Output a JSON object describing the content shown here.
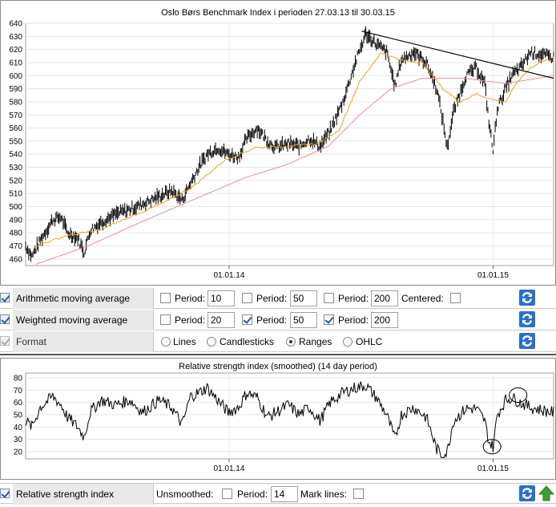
{
  "chart_data": [
    {
      "type": "bar",
      "subtype": "ohlc-ranges",
      "title": "Oslo Børs Benchmark Index i perioden 27.03.13 til 30.03.15",
      "ylim": [
        455,
        640
      ],
      "yticks": [
        460,
        470,
        480,
        490,
        500,
        510,
        520,
        530,
        540,
        550,
        560,
        570,
        580,
        590,
        600,
        610,
        620,
        630,
        640
      ],
      "xlim": [
        0,
        506
      ],
      "xticks": [
        {
          "t": 195,
          "label": "01.01.14"
        },
        {
          "t": 448,
          "label": "01.01.15"
        }
      ],
      "grid": true,
      "series": [
        {
          "name": "Index",
          "color": "#000000",
          "knots": [
            [
              0,
              470
            ],
            [
              6,
              462
            ],
            [
              14,
              474
            ],
            [
              26,
              490
            ],
            [
              34,
              492
            ],
            [
              40,
              480
            ],
            [
              50,
              476
            ],
            [
              56,
              465
            ],
            [
              62,
              482
            ],
            [
              72,
              488
            ],
            [
              86,
              494
            ],
            [
              100,
              498
            ],
            [
              112,
              502
            ],
            [
              128,
              508
            ],
            [
              140,
              512
            ],
            [
              150,
              505
            ],
            [
              158,
              518
            ],
            [
              166,
              530
            ],
            [
              174,
              540
            ],
            [
              184,
              545
            ],
            [
              194,
              540
            ],
            [
              204,
              538
            ],
            [
              212,
              552
            ],
            [
              222,
              560
            ],
            [
              232,
              550
            ],
            [
              240,
              545
            ],
            [
              252,
              548
            ],
            [
              262,
              546
            ],
            [
              272,
              552
            ],
            [
              282,
              546
            ],
            [
              292,
              558
            ],
            [
              304,
              580
            ],
            [
              316,
              610
            ],
            [
              326,
              632
            ],
            [
              336,
              624
            ],
            [
              346,
              618
            ],
            [
              354,
              592
            ],
            [
              360,
              612
            ],
            [
              372,
              618
            ],
            [
              384,
              610
            ],
            [
              394,
              590
            ],
            [
              400,
              565
            ],
            [
              404,
              545
            ],
            [
              410,
              572
            ],
            [
              422,
              600
            ],
            [
              432,
              606
            ],
            [
              440,
              594
            ],
            [
              444,
              565
            ],
            [
              448,
              542
            ],
            [
              452,
              575
            ],
            [
              460,
              590
            ],
            [
              466,
              600
            ],
            [
              474,
              606
            ],
            [
              484,
              618
            ],
            [
              494,
              616
            ],
            [
              504,
              614
            ]
          ]
        },
        {
          "name": "Arithmetic moving average 50",
          "color": "#e8a020",
          "knots": [
            [
              10,
              470
            ],
            [
              40,
              478
            ],
            [
              70,
              482
            ],
            [
              100,
              492
            ],
            [
              130,
              502
            ],
            [
              160,
              515
            ],
            [
              190,
              535
            ],
            [
              220,
              545
            ],
            [
              250,
              546
            ],
            [
              280,
              548
            ],
            [
              300,
              558
            ],
            [
              320,
              595
            ],
            [
              340,
              617
            ],
            [
              360,
              612
            ],
            [
              380,
              610
            ],
            [
              400,
              590
            ],
            [
              416,
              580
            ],
            [
              432,
              586
            ],
            [
              446,
              582
            ],
            [
              460,
              580
            ],
            [
              472,
              596
            ],
            [
              484,
              606
            ],
            [
              494,
              611
            ],
            [
              504,
              612
            ]
          ]
        },
        {
          "name": "Weighted moving average 200",
          "color": "#e88aa0",
          "knots": [
            [
              10,
              456
            ],
            [
              60,
              470
            ],
            [
              110,
              488
            ],
            [
              160,
              505
            ],
            [
              210,
              522
            ],
            [
              250,
              532
            ],
            [
              290,
              546
            ],
            [
              320,
              570
            ],
            [
              350,
              590
            ],
            [
              380,
              598
            ],
            [
              420,
              598
            ],
            [
              460,
              594
            ],
            [
              506,
              600
            ]
          ]
        },
        {
          "name": "Trend line",
          "color": "#000000",
          "knots": [
            [
              322,
              634
            ],
            [
              506,
              598
            ]
          ]
        }
      ]
    },
    {
      "type": "line",
      "title": "Relative strength index (smoothed) (14 day period)",
      "ylim": [
        14,
        84
      ],
      "yticks": [
        20,
        30,
        40,
        50,
        60,
        70,
        80
      ],
      "xlim": [
        0,
        506
      ],
      "xticks": [
        {
          "t": 195,
          "label": "01.01.14"
        },
        {
          "t": 448,
          "label": "01.01.15"
        }
      ],
      "grid": true,
      "series": [
        {
          "name": "RSI",
          "color": "#000000",
          "knots": [
            [
              0,
              45
            ],
            [
              6,
              40
            ],
            [
              14,
              56
            ],
            [
              26,
              65
            ],
            [
              34,
              58
            ],
            [
              40,
              48
            ],
            [
              50,
              40
            ],
            [
              56,
              32
            ],
            [
              62,
              52
            ],
            [
              72,
              62
            ],
            [
              86,
              58
            ],
            [
              100,
              62
            ],
            [
              112,
              52
            ],
            [
              128,
              62
            ],
            [
              140,
              56
            ],
            [
              150,
              42
            ],
            [
              158,
              65
            ],
            [
              166,
              68
            ],
            [
              174,
              72
            ],
            [
              184,
              62
            ],
            [
              194,
              52
            ],
            [
              204,
              56
            ],
            [
              212,
              68
            ],
            [
              222,
              64
            ],
            [
              232,
              48
            ],
            [
              240,
              52
            ],
            [
              252,
              58
            ],
            [
              262,
              50
            ],
            [
              272,
              56
            ],
            [
              282,
              45
            ],
            [
              292,
              60
            ],
            [
              304,
              68
            ],
            [
              316,
              72
            ],
            [
              326,
              74
            ],
            [
              336,
              64
            ],
            [
              346,
              50
            ],
            [
              354,
              30
            ],
            [
              360,
              50
            ],
            [
              372,
              56
            ],
            [
              384,
              48
            ],
            [
              394,
              22
            ],
            [
              400,
              16
            ],
            [
              404,
              20
            ],
            [
              410,
              45
            ],
            [
              422,
              55
            ],
            [
              432,
              55
            ],
            [
              440,
              45
            ],
            [
              444,
              28
            ],
            [
              448,
              24
            ],
            [
              452,
              50
            ],
            [
              460,
              62
            ],
            [
              466,
              64
            ],
            [
              474,
              60
            ],
            [
              484,
              56
            ],
            [
              494,
              54
            ],
            [
              504,
              52
            ]
          ]
        }
      ],
      "markers": [
        {
          "t": 447,
          "v": 24
        },
        {
          "t": 472,
          "v": 66
        }
      ]
    }
  ],
  "controls": {
    "rows": [
      {
        "label": "Arithmetic moving average",
        "period_label": "Period:",
        "p1": "10",
        "p2": "50",
        "p3": "200",
        "centered_label": "Centered:"
      },
      {
        "label": "Weighted moving average",
        "period_label": "Period:",
        "p1": "20",
        "p2": "50",
        "p3": "200"
      }
    ],
    "format": {
      "label": "Format",
      "opt_lines": "Lines",
      "opt_candlesticks": "Candlesticks",
      "opt_ranges": "Ranges",
      "opt_ohlc": "OHLC"
    },
    "rsi": {
      "label": "Relative strength index",
      "unsmoothed_label": "Unsmoothed:",
      "period_label": "Period:",
      "period": "14",
      "mark_lines_label": "Mark lines:"
    }
  },
  "colors": {
    "refresh_blue": "#2a6fd0",
    "up_arrow_green": "#3aa030"
  }
}
